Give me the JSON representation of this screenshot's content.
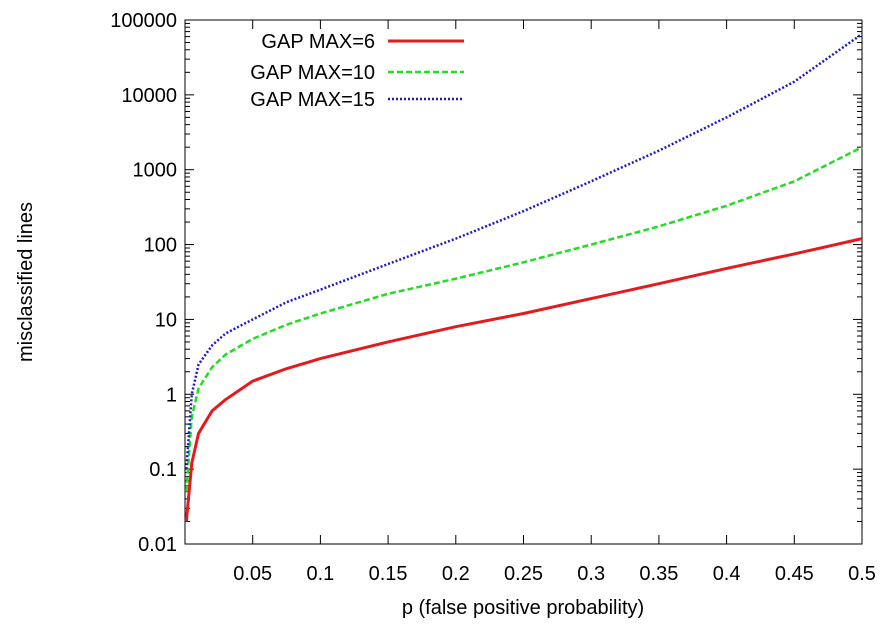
{
  "chart_data": {
    "type": "line",
    "xlabel": "p (false positive probability)",
    "ylabel": "misclassified lines",
    "xlim": [
      0,
      0.5
    ],
    "ylim": [
      0.01,
      100000
    ],
    "y_scale": "log",
    "x_ticks": [
      0.05,
      0.1,
      0.15,
      0.2,
      0.25,
      0.3,
      0.35,
      0.4,
      0.45,
      0.5
    ],
    "x_tick_labels": [
      "0.05",
      "0.1",
      "0.15",
      "0.2",
      "0.25",
      "0.3",
      "0.35",
      "0.4",
      "0.45",
      "0.5"
    ],
    "y_ticks": [
      0.01,
      0.1,
      1,
      10,
      100,
      1000,
      10000,
      100000
    ],
    "y_tick_labels": [
      "0.01",
      "0.1",
      "1",
      "10",
      "100",
      "1000",
      "10000",
      "100000"
    ],
    "grid": false,
    "legend_position": "top-left",
    "series": [
      {
        "name": "GAP MAX=6",
        "color": "#e41a1c",
        "style": "solid",
        "points": [
          [
            0.001,
            0.02
          ],
          [
            0.005,
            0.12
          ],
          [
            0.01,
            0.3
          ],
          [
            0.02,
            0.6
          ],
          [
            0.03,
            0.85
          ],
          [
            0.05,
            1.5
          ],
          [
            0.075,
            2.2
          ],
          [
            0.1,
            3.0
          ],
          [
            0.15,
            5.0
          ],
          [
            0.2,
            8.0
          ],
          [
            0.25,
            12.0
          ],
          [
            0.3,
            19.0
          ],
          [
            0.35,
            30.0
          ],
          [
            0.4,
            48.0
          ],
          [
            0.45,
            75.0
          ],
          [
            0.5,
            120.0
          ]
        ]
      },
      {
        "name": "GAP MAX=10",
        "color": "#22dd22",
        "style": "dashed",
        "points": [
          [
            0.001,
            0.05
          ],
          [
            0.005,
            0.5
          ],
          [
            0.01,
            1.2
          ],
          [
            0.02,
            2.3
          ],
          [
            0.03,
            3.4
          ],
          [
            0.05,
            5.5
          ],
          [
            0.075,
            8.5
          ],
          [
            0.1,
            12.0
          ],
          [
            0.15,
            22.0
          ],
          [
            0.2,
            35.0
          ],
          [
            0.25,
            58.0
          ],
          [
            0.3,
            100.0
          ],
          [
            0.35,
            175.0
          ],
          [
            0.4,
            330.0
          ],
          [
            0.45,
            700.0
          ],
          [
            0.5,
            2000.0
          ]
        ]
      },
      {
        "name": "GAP MAX=15",
        "color": "#1a1acc",
        "style": "dotted",
        "points": [
          [
            0.001,
            0.1
          ],
          [
            0.005,
            1.0
          ],
          [
            0.01,
            2.5
          ],
          [
            0.02,
            4.5
          ],
          [
            0.03,
            6.5
          ],
          [
            0.05,
            10.0
          ],
          [
            0.075,
            17.0
          ],
          [
            0.1,
            25.0
          ],
          [
            0.15,
            55.0
          ],
          [
            0.2,
            120.0
          ],
          [
            0.25,
            280.0
          ],
          [
            0.3,
            700.0
          ],
          [
            0.35,
            1800.0
          ],
          [
            0.4,
            5000.0
          ],
          [
            0.45,
            15000.0
          ],
          [
            0.5,
            65000.0
          ]
        ]
      }
    ]
  }
}
